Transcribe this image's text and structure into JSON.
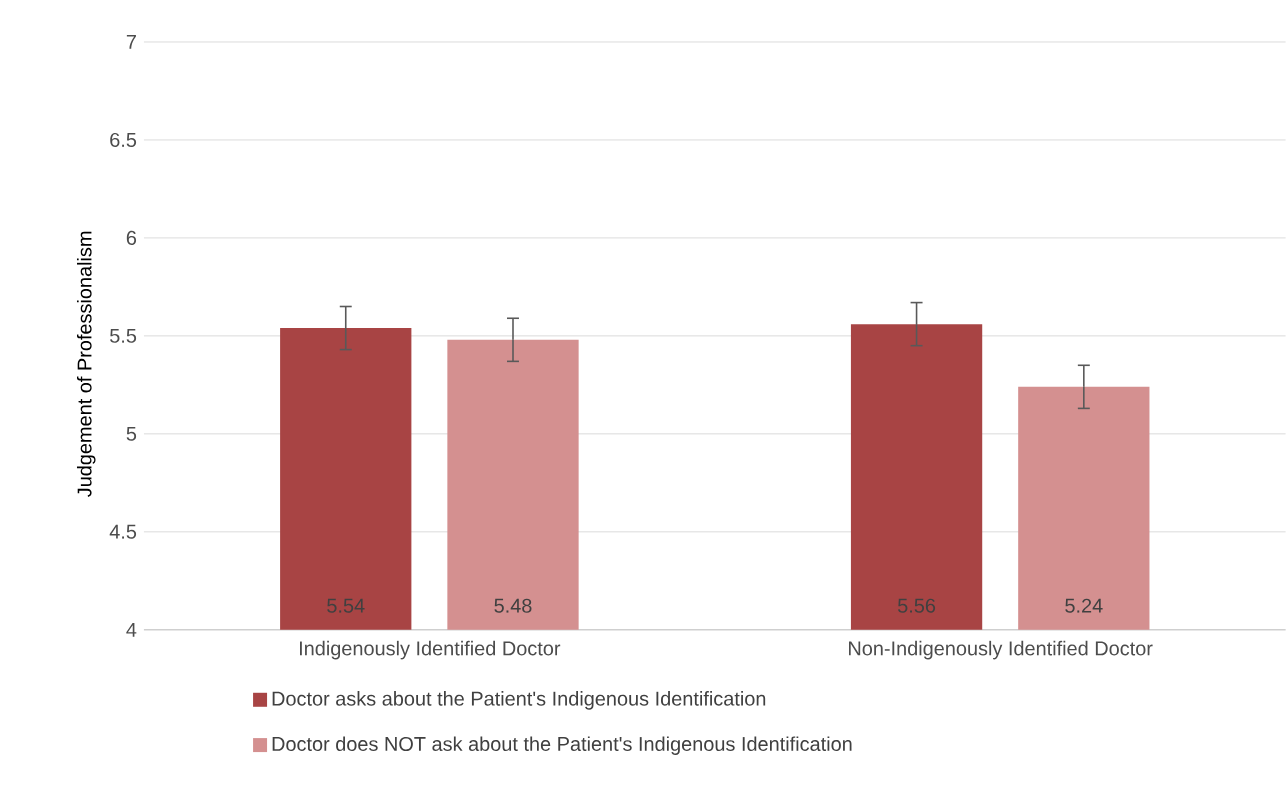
{
  "chart_data": {
    "type": "bar",
    "ylabel": "Judgement of Professionalism",
    "categories": [
      "Indigenously Identified Doctor",
      "Non-Indigenously Identified Doctor"
    ],
    "series": [
      {
        "name": "Doctor asks about the Patient's Indigenous Identification",
        "color": "#a84444",
        "values": [
          5.54,
          5.56
        ],
        "errors": [
          0.11,
          0.11
        ]
      },
      {
        "name": "Doctor does NOT ask about the Patient's Indigenous Identification",
        "color": "#d49090",
        "values": [
          5.48,
          5.24
        ],
        "errors": [
          0.11,
          0.11
        ]
      }
    ],
    "ylim": [
      4,
      7
    ],
    "yticks": [
      4,
      4.5,
      5,
      5.5,
      6,
      6.5,
      7
    ],
    "grid": "y",
    "legend": "bottom",
    "data_labels": true
  }
}
